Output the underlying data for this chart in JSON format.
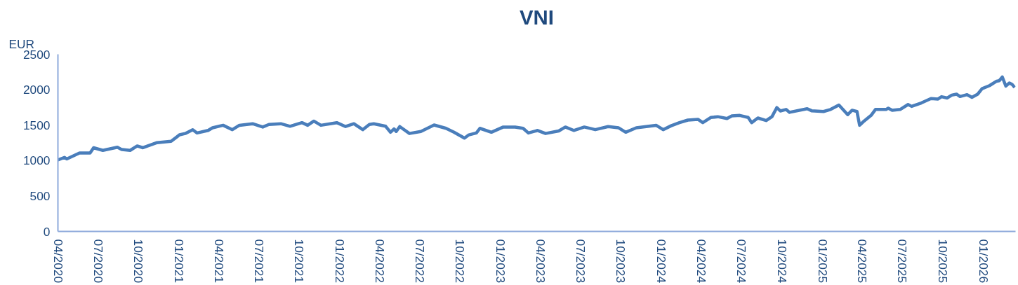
{
  "chart_data": {
    "type": "line",
    "title": "VNI",
    "ylabel": "EUR",
    "x": [
      "2020-04-01",
      "2020-04-16",
      "2020-04-21",
      "2020-05-20",
      "2020-06-13",
      "2020-06-21",
      "2020-07-12",
      "2020-08-14",
      "2020-08-24",
      "2020-09-12",
      "2020-09-28",
      "2020-10-11",
      "2020-11-12",
      "2020-12-14",
      "2021-01-02",
      "2021-01-15",
      "2021-02-01",
      "2021-02-11",
      "2021-03-08",
      "2021-03-18",
      "2021-04-11",
      "2021-05-02",
      "2021-05-18",
      "2021-06-17",
      "2021-07-10",
      "2021-07-24",
      "2021-08-20",
      "2021-09-10",
      "2021-10-07",
      "2021-10-20",
      "2021-11-03",
      "2021-11-19",
      "2021-12-25",
      "2022-01-14",
      "2022-02-02",
      "2022-02-22",
      "2022-03-09",
      "2022-03-19",
      "2022-04-15",
      "2022-04-26",
      "2022-05-04",
      "2022-05-09",
      "2022-05-17",
      "2022-06-08",
      "2022-07-04",
      "2022-08-03",
      "2022-08-30",
      "2022-09-17",
      "2022-10-11",
      "2022-10-21",
      "2022-11-07",
      "2022-11-15",
      "2022-12-11",
      "2023-01-07",
      "2023-02-03",
      "2023-02-21",
      "2023-03-05",
      "2023-03-26",
      "2023-04-13",
      "2023-05-13",
      "2023-05-28",
      "2023-06-16",
      "2023-07-10",
      "2023-08-04",
      "2023-09-02",
      "2023-09-26",
      "2023-10-12",
      "2023-11-05",
      "2023-12-20",
      "2024-01-05",
      "2024-01-23",
      "2024-02-11",
      "2024-03-01",
      "2024-03-24",
      "2024-04-04",
      "2024-04-22",
      "2024-05-08",
      "2024-05-29",
      "2024-06-09",
      "2024-06-27",
      "2024-07-16",
      "2024-07-24",
      "2024-08-07",
      "2024-08-26",
      "2024-09-08",
      "2024-09-19",
      "2024-09-27",
      "2024-10-10",
      "2024-10-18",
      "2024-11-27",
      "2024-12-07",
      "2025-01-03",
      "2025-01-19",
      "2025-02-07",
      "2025-02-27",
      "2025-03-09",
      "2025-03-20",
      "2025-03-26",
      "2025-04-05",
      "2025-04-21",
      "2025-05-01",
      "2025-05-25",
      "2025-05-30",
      "2025-06-08",
      "2025-06-26",
      "2025-07-14",
      "2025-07-22",
      "2025-08-13",
      "2025-09-04",
      "2025-09-20",
      "2025-09-28",
      "2025-10-11",
      "2025-10-21",
      "2025-11-01",
      "2025-11-09",
      "2025-11-25",
      "2025-12-06",
      "2025-12-19",
      "2025-12-29",
      "2026-01-15",
      "2026-01-31",
      "2026-02-06",
      "2026-02-13",
      "2026-02-21",
      "2026-03-01",
      "2026-03-07",
      "2026-03-13"
    ],
    "series": [
      {
        "color": "#4a7ebb",
        "values": [
          1009,
          1045,
          1023,
          1107,
          1107,
          1181,
          1144,
          1188,
          1155,
          1144,
          1206,
          1181,
          1253,
          1272,
          1363,
          1382,
          1436,
          1389,
          1425,
          1462,
          1498,
          1436,
          1498,
          1520,
          1473,
          1509,
          1520,
          1484,
          1535,
          1498,
          1557,
          1498,
          1535,
          1480,
          1520,
          1436,
          1509,
          1520,
          1484,
          1400,
          1447,
          1411,
          1480,
          1382,
          1411,
          1502,
          1455,
          1400,
          1316,
          1363,
          1389,
          1455,
          1400,
          1473,
          1473,
          1455,
          1389,
          1425,
          1382,
          1418,
          1473,
          1425,
          1473,
          1436,
          1480,
          1462,
          1400,
          1462,
          1498,
          1436,
          1491,
          1535,
          1571,
          1582,
          1535,
          1608,
          1619,
          1593,
          1630,
          1637,
          1608,
          1535,
          1601,
          1564,
          1619,
          1747,
          1700,
          1721,
          1681,
          1732,
          1703,
          1692,
          1721,
          1784,
          1648,
          1710,
          1692,
          1498,
          1557,
          1637,
          1721,
          1721,
          1739,
          1710,
          1721,
          1791,
          1765,
          1813,
          1875,
          1868,
          1901,
          1883,
          1923,
          1937,
          1904,
          1930,
          1893,
          1937,
          2014,
          2058,
          2120,
          2127,
          2179,
          2051,
          2095,
          2076,
          2032
        ]
      }
    ],
    "xlim": [
      "2020-04-01",
      "2026-03-15"
    ],
    "xticks": [
      {
        "value": "2020-04-01",
        "label": "04/2020"
      },
      {
        "value": "2020-07-01",
        "label": "07/2020"
      },
      {
        "value": "2020-10-01",
        "label": "10/2020"
      },
      {
        "value": "2021-01-01",
        "label": "01/2021"
      },
      {
        "value": "2021-04-01",
        "label": "04/2021"
      },
      {
        "value": "2021-07-01",
        "label": "07/2021"
      },
      {
        "value": "2021-10-01",
        "label": "10/2021"
      },
      {
        "value": "2022-01-01",
        "label": "01/2022"
      },
      {
        "value": "2022-04-01",
        "label": "04/2022"
      },
      {
        "value": "2022-07-01",
        "label": "07/2022"
      },
      {
        "value": "2022-10-01",
        "label": "10/2022"
      },
      {
        "value": "2023-01-01",
        "label": "01/2023"
      },
      {
        "value": "2023-04-01",
        "label": "04/2023"
      },
      {
        "value": "2023-07-01",
        "label": "07/2023"
      },
      {
        "value": "2023-10-01",
        "label": "10/2023"
      },
      {
        "value": "2024-01-01",
        "label": "01/2024"
      },
      {
        "value": "2024-04-01",
        "label": "04/2024"
      },
      {
        "value": "2024-07-01",
        "label": "07/2024"
      },
      {
        "value": "2024-10-01",
        "label": "10/2024"
      },
      {
        "value": "2025-01-01",
        "label": "01/2025"
      },
      {
        "value": "2025-04-01",
        "label": "04/2025"
      },
      {
        "value": "2025-07-01",
        "label": "07/2025"
      },
      {
        "value": "2025-10-01",
        "label": "10/2025"
      },
      {
        "value": "2026-01-01",
        "label": "01/2026"
      }
    ],
    "ylim": [
      0,
      2500
    ],
    "yticks": [
      0,
      500,
      1000,
      1500,
      2000,
      2500
    ]
  }
}
